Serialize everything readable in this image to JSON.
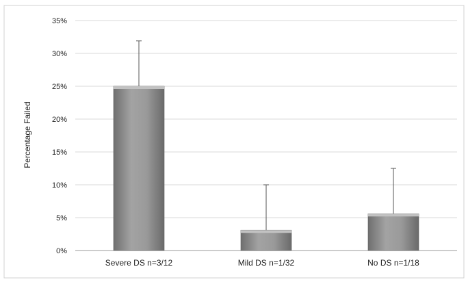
{
  "chart_data": {
    "type": "bar",
    "categories": [
      "Severe DS n=3/12",
      "Mild DS n=1/32",
      "No DS n=1/18"
    ],
    "values": [
      25,
      3.1,
      5.6
    ],
    "error_upper": [
      31.9,
      10,
      12.5
    ],
    "title": "",
    "xlabel": "",
    "ylabel": "Percentage Failed",
    "ylim": [
      0,
      35
    ],
    "yticks": [
      0,
      5,
      10,
      15,
      20,
      25,
      30,
      35
    ],
    "ytick_labels": [
      "0%",
      "5%",
      "10%",
      "15%",
      "20%",
      "25%",
      "30%",
      "35%"
    ],
    "grid": true,
    "legend": "none",
    "colors": {
      "bar": "#8c8c8c",
      "grid": "#d9d9d9",
      "error": "#555555"
    }
  }
}
